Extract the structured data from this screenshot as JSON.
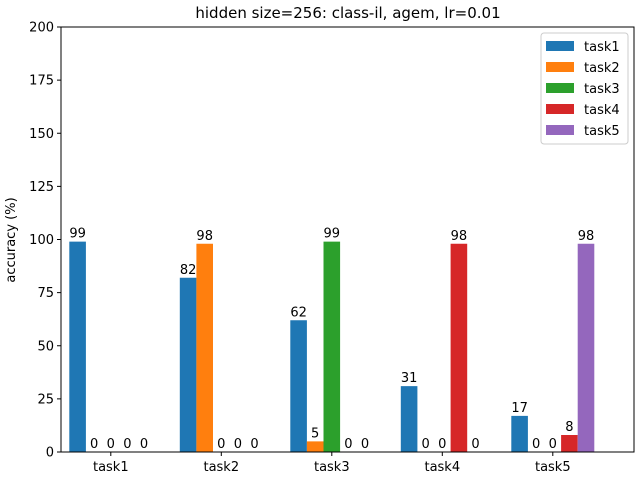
{
  "chart_data": {
    "type": "bar",
    "title": "hidden size=256: class-il, agem, lr=0.01",
    "xlabel": "",
    "ylabel": "accuracy (%)",
    "ylim": [
      0,
      200
    ],
    "yticks": [
      0,
      25,
      50,
      75,
      100,
      125,
      150,
      175,
      200
    ],
    "categories": [
      "task1",
      "task2",
      "task3",
      "task4",
      "task5"
    ],
    "legend_position": "top-right",
    "grid": false,
    "series": [
      {
        "name": "task1",
        "color": "#1f77b4",
        "values": [
          99,
          82,
          62,
          31,
          17
        ]
      },
      {
        "name": "task2",
        "color": "#ff7f0e",
        "values": [
          0,
          98,
          5,
          0,
          0
        ]
      },
      {
        "name": "task3",
        "color": "#2ca02c",
        "values": [
          0,
          0,
          99,
          0,
          0
        ]
      },
      {
        "name": "task4",
        "color": "#d62728",
        "values": [
          0,
          0,
          0,
          98,
          8
        ]
      },
      {
        "name": "task5",
        "color": "#9467bd",
        "values": [
          0,
          0,
          0,
          0,
          98
        ]
      }
    ]
  }
}
